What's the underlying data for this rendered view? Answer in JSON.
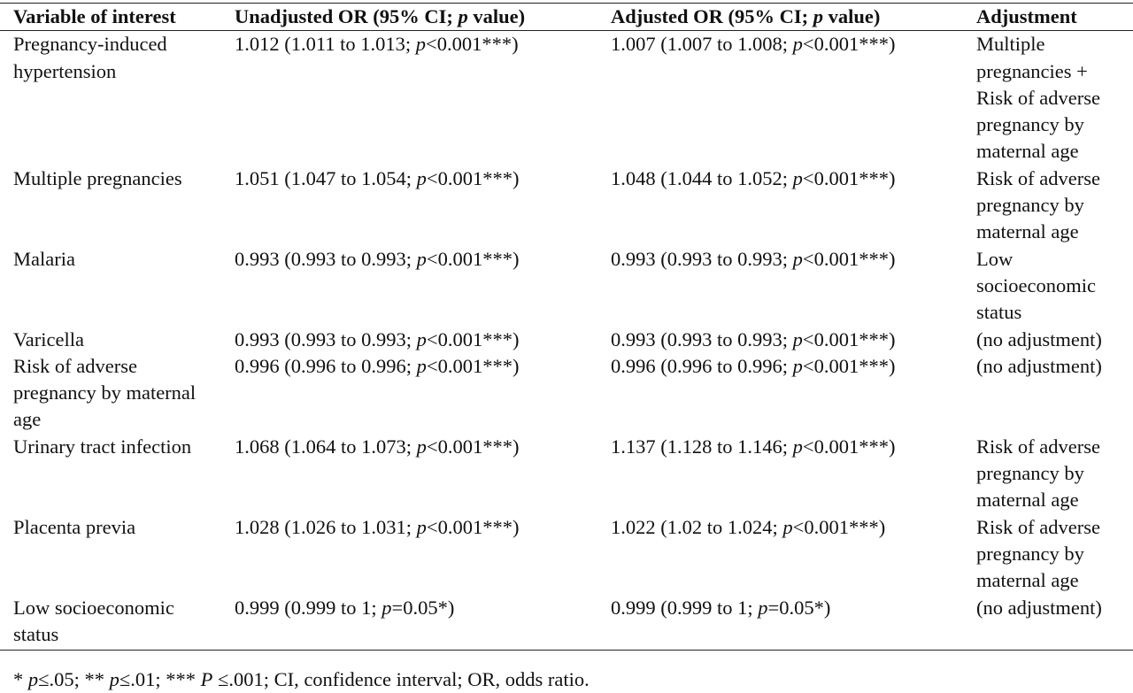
{
  "table": {
    "header": [
      "Variable of interest",
      "Unadjusted OR (95% CI; p value)",
      "Adjusted OR (95% CI; p value)",
      "Adjustment"
    ],
    "rows": [
      [
        "Pregnancy-induced hypertension",
        "1.012 (1.011 to 1.013; p<0.001***)",
        "1.007 (1.007 to 1.008; p<0.001***)",
        "Multiple pregnancies + Risk of adverse pregnancy by maternal age"
      ],
      [
        "Multiple pregnancies",
        "1.051 (1.047 to 1.054; p<0.001***)",
        "1.048 (1.044 to 1.052; p<0.001***)",
        "Risk of adverse pregnancy by maternal age"
      ],
      [
        "Malaria",
        "0.993 (0.993 to 0.993; p<0.001***)",
        "0.993 (0.993 to 0.993; p<0.001***)",
        "Low socioeconomic status"
      ],
      [
        "Varicella",
        "0.993 (0.993 to 0.993; p<0.001***)",
        "0.993 (0.993 to 0.993; p<0.001***)",
        "(no adjustment)"
      ],
      [
        "Risk of adverse pregnancy by maternal age",
        "0.996 (0.996 to 0.996; p<0.001***)",
        "0.996 (0.996 to 0.996; p<0.001***)",
        "(no adjustment)"
      ],
      [
        "Urinary tract infection",
        "1.068 (1.064 to 1.073; p<0.001***)",
        "1.137 (1.128 to 1.146; p<0.001***)",
        "Risk of adverse pregnancy by maternal age"
      ],
      [
        "Placenta previa",
        "1.028 (1.026 to 1.031; p<0.001***)",
        "1.022 (1.02 to 1.024; p<0.001***)",
        "Risk of adverse pregnancy by maternal age"
      ],
      [
        "Low socioeconomic status",
        "0.999 (0.999 to 1; p=0.05*)",
        "0.999 (0.999 to 1; p=0.05*)",
        "(no adjustment)"
      ]
    ],
    "footnote": "* p≤.05; ** p≤.01; *** P ≤.001; CI, confidence interval; OR, odds ratio."
  }
}
